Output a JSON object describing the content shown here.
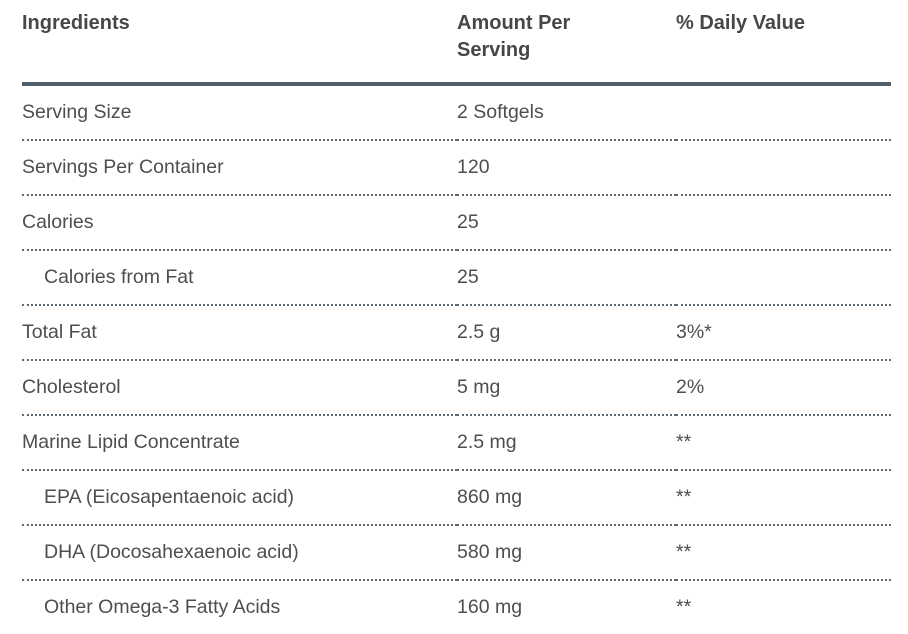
{
  "chart_data": {
    "type": "table",
    "title": "Supplement ingredients table",
    "columns": [
      "Ingredients",
      "Amount Per Serving",
      "% Daily Value"
    ],
    "rows": [
      {
        "ingredient": "Serving Size",
        "amount": "2 Softgels",
        "daily_value": "",
        "indent": false
      },
      {
        "ingredient": "Servings Per Container",
        "amount": "120",
        "daily_value": "",
        "indent": false
      },
      {
        "ingredient": "Calories",
        "amount": "25",
        "daily_value": "",
        "indent": false
      },
      {
        "ingredient": "Calories from Fat",
        "amount": "25",
        "daily_value": "",
        "indent": true
      },
      {
        "ingredient": "Total Fat",
        "amount": "2.5 g",
        "daily_value": "3%*",
        "indent": false
      },
      {
        "ingredient": "Cholesterol",
        "amount": "5 mg",
        "daily_value": "2%",
        "indent": false
      },
      {
        "ingredient": "Marine Lipid Concentrate",
        "amount": "2.5 mg",
        "daily_value": "**",
        "indent": false
      },
      {
        "ingredient": "EPA (Eicosapentaenoic acid)",
        "amount": "860 mg",
        "daily_value": "**",
        "indent": true
      },
      {
        "ingredient": "DHA (Docosahexaenoic acid)",
        "amount": "580 mg",
        "daily_value": "**",
        "indent": true
      },
      {
        "ingredient": "Other Omega-3 Fatty Acids",
        "amount": "160 mg",
        "daily_value": "**",
        "indent": true
      }
    ],
    "layout": {
      "grid": "dotted row separators",
      "header_rule": "thick solid"
    }
  },
  "colors": {
    "background": "#ffffff",
    "header_text": "#474747",
    "body_text": "#4e4e4e",
    "header_rule": "#50606c",
    "row_rule": "#5c6973"
  }
}
